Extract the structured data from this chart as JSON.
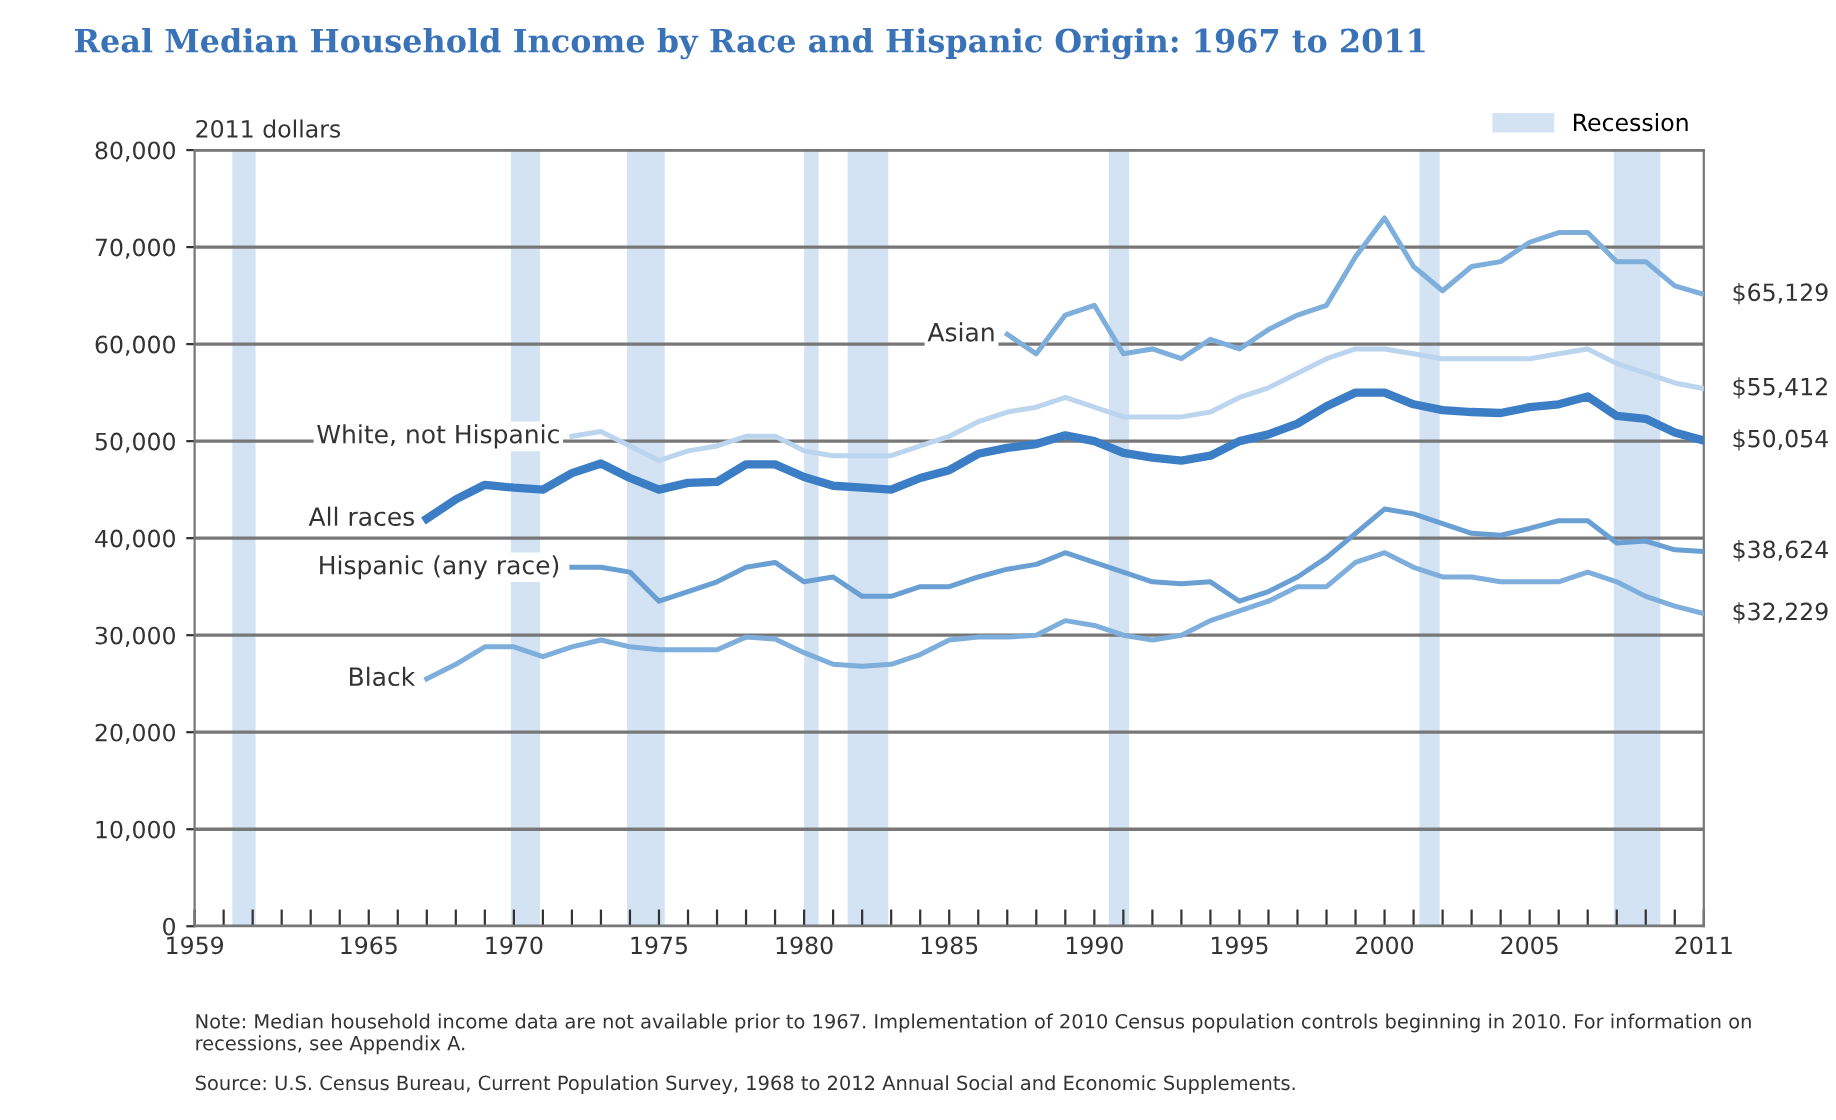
{
  "chart_data": {
    "type": "line",
    "title": "Real Median Household Income by Race and Hispanic Origin: 1967 to 2011",
    "ylabel": "2011 dollars",
    "xlim": [
      1959,
      2011
    ],
    "ylim": [
      0,
      80000
    ],
    "xticks": [
      1959,
      {
        "value": 1960,
        "label": null
      },
      {
        "value": 1961,
        "label": null
      },
      {
        "value": 1962,
        "label": null
      },
      {
        "value": 1963,
        "label": null
      },
      {
        "value": 1964,
        "label": null
      },
      1965,
      {
        "value": 1966,
        "label": null
      },
      {
        "value": 1967,
        "label": null
      },
      {
        "value": 1968,
        "label": null
      },
      {
        "value": 1969,
        "label": null
      },
      1970,
      {
        "value": 1971,
        "label": null
      },
      {
        "value": 1972,
        "label": null
      },
      {
        "value": 1973,
        "label": null
      },
      {
        "value": 1974,
        "label": null
      },
      1975,
      {
        "value": 1976,
        "label": null
      },
      {
        "value": 1977,
        "label": null
      },
      {
        "value": 1978,
        "label": null
      },
      {
        "value": 1979,
        "label": null
      },
      1980,
      {
        "value": 1981,
        "label": null
      },
      {
        "value": 1982,
        "label": null
      },
      {
        "value": 1983,
        "label": null
      },
      {
        "value": 1984,
        "label": null
      },
      1985,
      {
        "value": 1986,
        "label": null
      },
      {
        "value": 1987,
        "label": null
      },
      {
        "value": 1988,
        "label": null
      },
      {
        "value": 1989,
        "label": null
      },
      1990,
      {
        "value": 1991,
        "label": null
      },
      {
        "value": 1992,
        "label": null
      },
      {
        "value": 1993,
        "label": null
      },
      {
        "value": 1994,
        "label": null
      },
      1995,
      {
        "value": 1996,
        "label": null
      },
      {
        "value": 1997,
        "label": null
      },
      {
        "value": 1998,
        "label": null
      },
      {
        "value": 1999,
        "label": null
      },
      2000,
      {
        "value": 2001,
        "label": null
      },
      {
        "value": 2002,
        "label": null
      },
      {
        "value": 2003,
        "label": null
      },
      {
        "value": 2004,
        "label": null
      },
      2005,
      {
        "value": 2006,
        "label": null
      },
      {
        "value": 2007,
        "label": null
      },
      {
        "value": 2008,
        "label": null
      },
      {
        "value": 2009,
        "label": null
      },
      {
        "value": 2010,
        "label": null
      },
      2011
    ],
    "yticks": [
      0,
      {
        "value": 10000,
        "label": "10,000"
      },
      {
        "value": 20000,
        "label": "20,000"
      },
      {
        "value": 30000,
        "label": "30,000"
      },
      {
        "value": 40000,
        "label": "40,000"
      },
      {
        "value": 50000,
        "label": "50,000"
      },
      {
        "value": 60000,
        "label": "60,000"
      },
      {
        "value": 70000,
        "label": "70,000"
      },
      {
        "value": 80000,
        "label": "80,000"
      }
    ],
    "grid": "y",
    "legend": "top right",
    "marker": "none",
    "line_style": "solid",
    "series": [
      {
        "name": "Asian",
        "color": "#7eaedc",
        "x": [
          1987,
          1988,
          1989,
          1990,
          1991,
          1992,
          1993,
          1994,
          1995,
          1996,
          1997,
          1998,
          1999,
          2000,
          2001,
          2002,
          2003,
          2004,
          2005,
          2006,
          2007,
          2008,
          2009,
          2010,
          2011
        ],
        "values": [
          61000,
          59000,
          63000,
          64000,
          59000,
          59500,
          58500,
          60500,
          59500,
          61500,
          63000,
          64000,
          69000,
          73000,
          68000,
          65500,
          68000,
          68500,
          70500,
          71500,
          71500,
          68500,
          68500,
          66000,
          65129
        ],
        "value_labels": [
          null,
          null,
          null,
          null,
          null,
          null,
          null,
          null,
          null,
          null,
          null,
          null,
          null,
          null,
          null,
          null,
          null,
          null,
          null,
          null,
          null,
          null,
          null,
          null,
          "$65,129"
        ]
      },
      {
        "name": "White, not Hispanic",
        "color": "#bcd5ee",
        "x": [
          1972,
          1973,
          1974,
          1975,
          1976,
          1977,
          1978,
          1979,
          1980,
          1981,
          1982,
          1983,
          1984,
          1985,
          1986,
          1987,
          1988,
          1989,
          1990,
          1991,
          1992,
          1993,
          1994,
          1995,
          1996,
          1997,
          1998,
          1999,
          2000,
          2001,
          2002,
          2003,
          2004,
          2005,
          2006,
          2007,
          2008,
          2009,
          2010,
          2011
        ],
        "values": [
          50500,
          51000,
          49500,
          48000,
          49000,
          49500,
          50500,
          50500,
          49000,
          48500,
          48500,
          48500,
          49500,
          50500,
          52000,
          53000,
          53500,
          54500,
          53500,
          52500,
          52500,
          52500,
          53000,
          54500,
          55500,
          57000,
          58500,
          59500,
          59500,
          59000,
          58500,
          58500,
          58500,
          58500,
          59000,
          59500,
          58000,
          57000,
          56000,
          55412
        ],
        "value_labels": [
          null,
          null,
          null,
          null,
          null,
          null,
          null,
          null,
          null,
          null,
          null,
          null,
          null,
          null,
          null,
          null,
          null,
          null,
          null,
          null,
          null,
          null,
          null,
          null,
          null,
          null,
          null,
          null,
          null,
          null,
          null,
          null,
          null,
          null,
          null,
          null,
          null,
          null,
          null,
          "$55,412"
        ]
      },
      {
        "name": "All races",
        "color": "#3b7ec6",
        "x": [
          1967,
          1968,
          1969,
          1970,
          1971,
          1972,
          1973,
          1974,
          1975,
          1976,
          1977,
          1978,
          1979,
          1980,
          1981,
          1982,
          1983,
          1984,
          1985,
          1986,
          1987,
          1988,
          1989,
          1990,
          1991,
          1992,
          1993,
          1994,
          1995,
          1996,
          1997,
          1998,
          1999,
          2000,
          2001,
          2002,
          2003,
          2004,
          2005,
          2006,
          2007,
          2008,
          2009,
          2010,
          2011
        ],
        "values": [
          42000,
          44000,
          45500,
          45200,
          45000,
          46700,
          47700,
          46200,
          45000,
          45700,
          45800,
          47600,
          47600,
          46300,
          45400,
          45200,
          45000,
          46200,
          47000,
          48700,
          49300,
          49700,
          50600,
          50000,
          48800,
          48300,
          48000,
          48500,
          50000,
          50700,
          51800,
          53600,
          55000,
          55000,
          53800,
          53200,
          53000,
          52900,
          53500,
          53800,
          54600,
          52600,
          52300,
          50900,
          50054
        ],
        "value_labels": [
          null,
          null,
          null,
          null,
          null,
          null,
          null,
          null,
          null,
          null,
          null,
          null,
          null,
          null,
          null,
          null,
          null,
          null,
          null,
          null,
          null,
          null,
          null,
          null,
          null,
          null,
          null,
          null,
          null,
          null,
          null,
          null,
          null,
          null,
          null,
          null,
          null,
          null,
          null,
          null,
          null,
          null,
          null,
          null,
          "$50,054"
        ]
      },
      {
        "name": "Hispanic (any race)",
        "color": "#6a9fd4",
        "x": [
          1972,
          1973,
          1974,
          1975,
          1976,
          1977,
          1978,
          1979,
          1980,
          1981,
          1982,
          1983,
          1984,
          1985,
          1986,
          1987,
          1988,
          1989,
          1990,
          1991,
          1992,
          1993,
          1994,
          1995,
          1996,
          1997,
          1998,
          1999,
          2000,
          2001,
          2002,
          2003,
          2004,
          2005,
          2006,
          2007,
          2008,
          2009,
          2010,
          2011
        ],
        "values": [
          37000,
          37000,
          36500,
          33500,
          34500,
          35500,
          37000,
          37500,
          35500,
          36000,
          34000,
          34000,
          35000,
          35000,
          36000,
          36800,
          37300,
          38500,
          37500,
          36500,
          35500,
          35300,
          35500,
          33500,
          34500,
          36000,
          38000,
          40500,
          43000,
          42500,
          41500,
          40500,
          40300,
          41000,
          41800,
          41800,
          39500,
          39700,
          38800,
          38624
        ],
        "value_labels": [
          null,
          null,
          null,
          null,
          null,
          null,
          null,
          null,
          null,
          null,
          null,
          null,
          null,
          null,
          null,
          null,
          null,
          null,
          null,
          null,
          null,
          null,
          null,
          null,
          null,
          null,
          null,
          null,
          null,
          null,
          null,
          null,
          null,
          null,
          null,
          null,
          null,
          null,
          null,
          "$38,624"
        ]
      },
      {
        "name": "Black",
        "color": "#7eaedc",
        "x": [
          1967,
          1968,
          1969,
          1970,
          1971,
          1972,
          1973,
          1974,
          1975,
          1976,
          1977,
          1978,
          1979,
          1980,
          1981,
          1982,
          1983,
          1984,
          1985,
          1986,
          1987,
          1988,
          1989,
          1990,
          1991,
          1992,
          1993,
          1994,
          1995,
          1996,
          1997,
          1998,
          1999,
          2000,
          2001,
          2002,
          2003,
          2004,
          2005,
          2006,
          2007,
          2008,
          2009,
          2010,
          2011
        ],
        "values": [
          25500,
          27000,
          28800,
          28800,
          27800,
          28800,
          29500,
          28800,
          28500,
          28500,
          28500,
          29800,
          29600,
          28200,
          27000,
          26800,
          27000,
          28000,
          29500,
          29800,
          29800,
          30000,
          31500,
          31000,
          30000,
          29500,
          30000,
          31500,
          32500,
          33500,
          35000,
          35000,
          37500,
          38500,
          37000,
          36000,
          36000,
          35500,
          35500,
          35500,
          36500,
          35500,
          34000,
          33000,
          32229
        ],
        "value_labels": [
          null,
          null,
          null,
          null,
          null,
          null,
          null,
          null,
          null,
          null,
          null,
          null,
          null,
          null,
          null,
          null,
          null,
          null,
          null,
          null,
          null,
          null,
          null,
          null,
          null,
          null,
          null,
          null,
          null,
          null,
          null,
          null,
          null,
          null,
          null,
          null,
          null,
          null,
          null,
          null,
          null,
          null,
          null,
          null,
          "$32,229"
        ]
      }
    ],
    "bands": [
      {
        "axis": "x",
        "from": 1960.3,
        "to": 1961.1,
        "label": "Recession",
        "color": "#d3e3f4"
      },
      {
        "axis": "x",
        "from": 1969.9,
        "to": 1970.9,
        "color": "#d3e3f4"
      },
      {
        "axis": "x",
        "from": 1973.9,
        "to": 1975.2,
        "color": "#d3e3f4"
      },
      {
        "axis": "x",
        "from": 1980.0,
        "to": 1980.5,
        "color": "#d3e3f4"
      },
      {
        "axis": "x",
        "from": 1981.5,
        "to": 1982.9,
        "color": "#d3e3f4"
      },
      {
        "axis": "x",
        "from": 1990.5,
        "to": 1991.2,
        "color": "#d3e3f4"
      },
      {
        "axis": "x",
        "from": 2001.2,
        "to": 2001.9,
        "color": "#d3e3f4"
      },
      {
        "axis": "x",
        "from": 2007.9,
        "to": 2009.5,
        "color": "#d3e3f4"
      }
    ],
    "annotations": [
      "Note: Median household income data are not available prior to 1967. Implementation of 2010 Census population controls beginning in 2010. For information on recessions, see Appendix A.",
      "Source: U.S. Census Bureau, Current Population Survey, 1968 to 2012 Annual Social and Economic Supplements."
    ]
  }
}
